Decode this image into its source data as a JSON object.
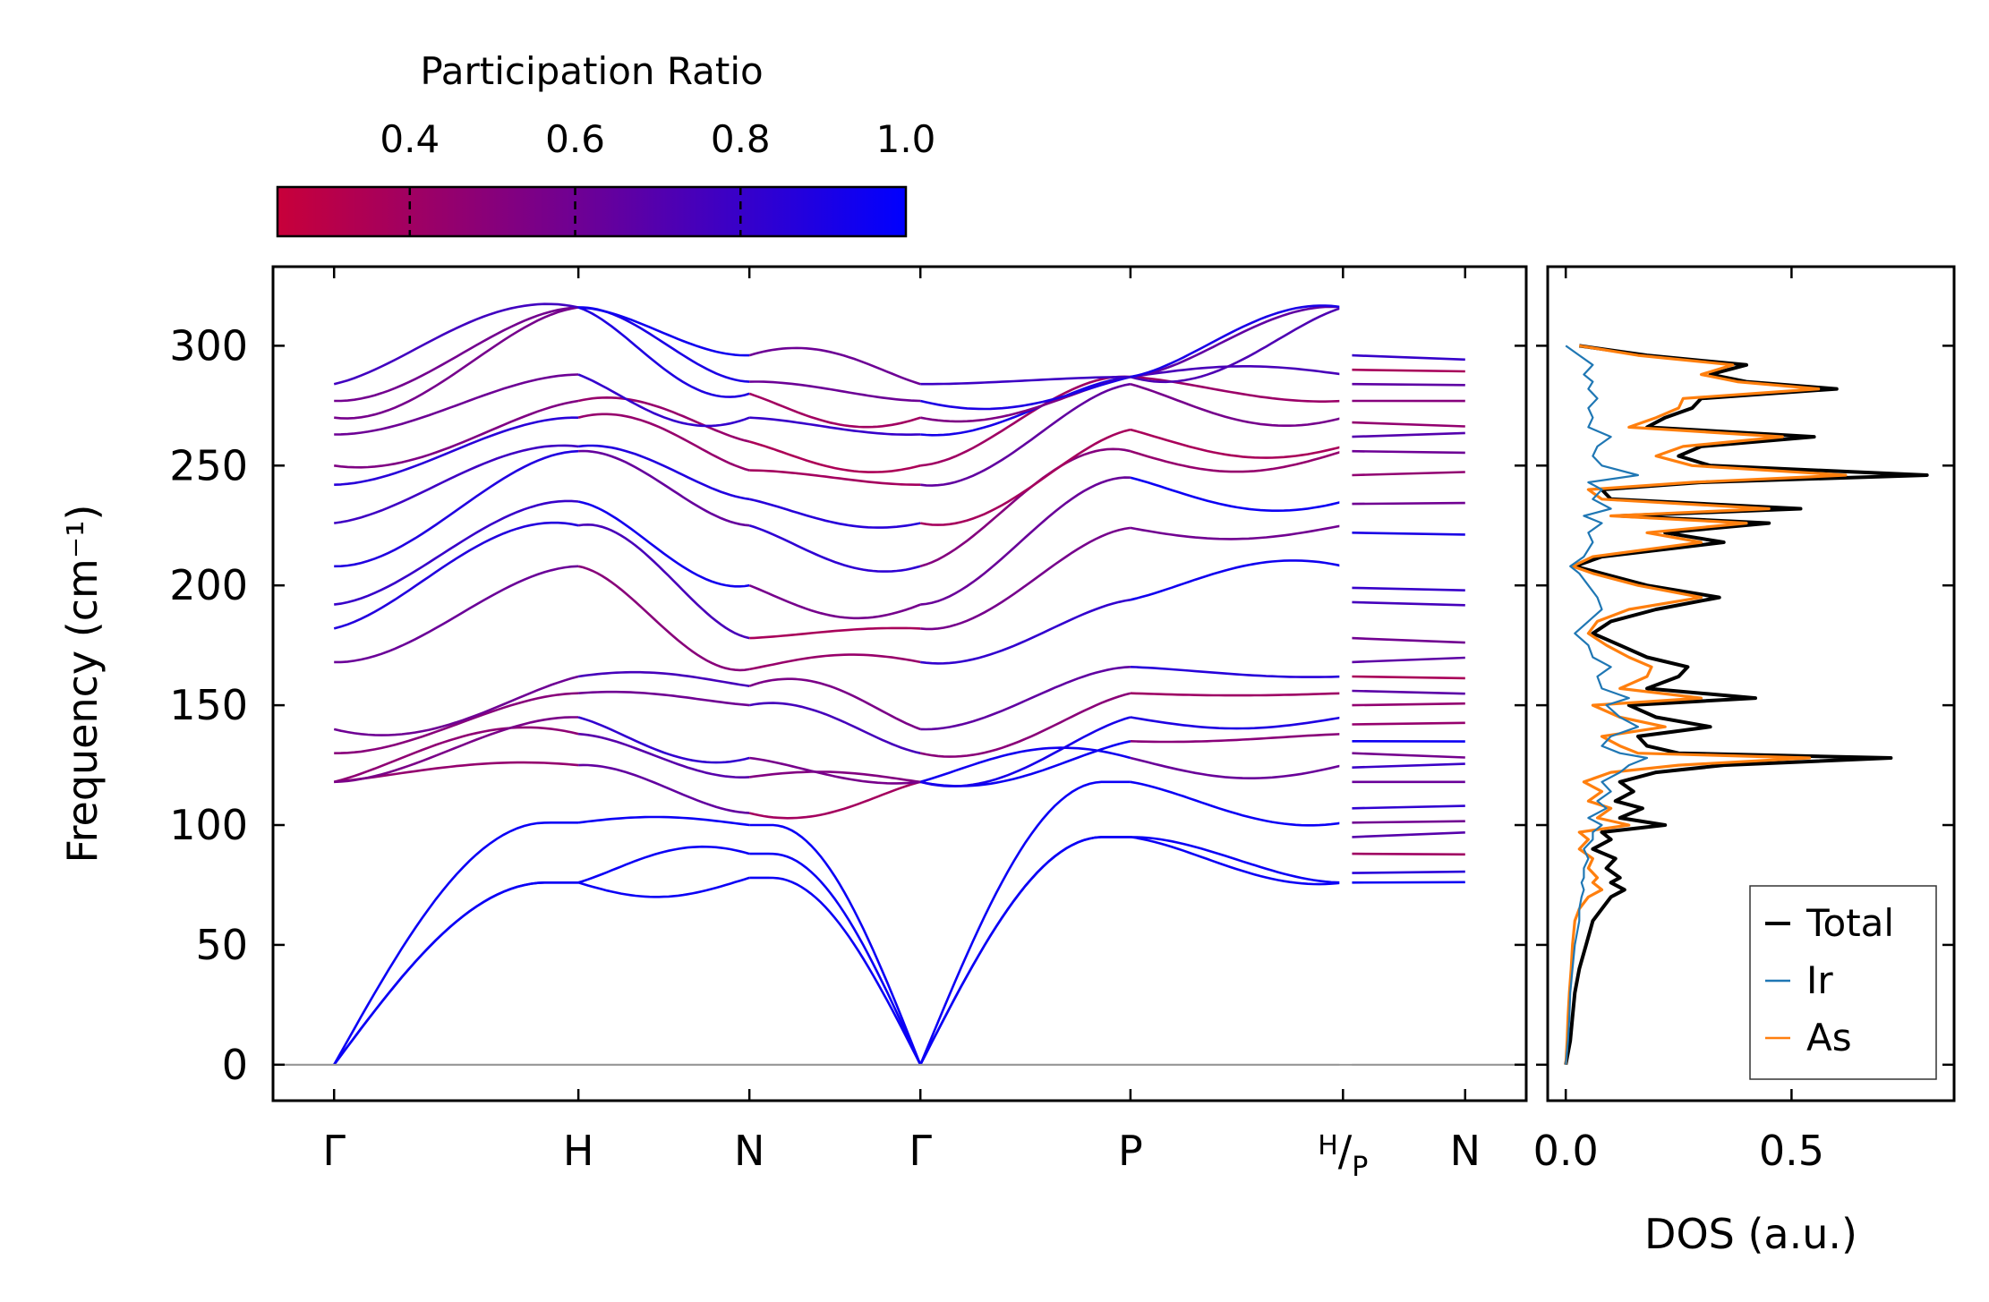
{
  "colorbar": {
    "title": "Participation Ratio",
    "ticks": [
      {
        "value": 0.4,
        "label": "0.4"
      },
      {
        "value": 0.6,
        "label": "0.6"
      },
      {
        "value": 0.8,
        "label": "0.8"
      },
      {
        "value": 1.0,
        "label": "1.0"
      }
    ],
    "range": [
      0.24,
      1.0
    ],
    "colors": {
      "low": "#c8003a",
      "high": "#0000ff"
    }
  },
  "chart_data": [
    {
      "type": "line",
      "name": "phonon-dispersion",
      "ylabel": "Frequency (cm⁻¹)",
      "ylim": [
        -15,
        333
      ],
      "yticks": [
        0,
        50,
        100,
        150,
        200,
        250,
        300
      ],
      "path_labels": [
        "Γ",
        "H",
        "N",
        "Γ",
        "P",
        "H/P",
        "N"
      ],
      "segment_lengths": [
        1.0,
        0.7,
        0.7,
        0.86,
        0.87,
        0.5
      ],
      "x_range": [
        -0.25,
        4.88
      ],
      "zero_line": true,
      "branch_frequencies_at_special_points": {
        "Gamma": [
          0,
          0,
          0,
          118,
          118,
          118,
          130,
          140,
          168,
          182,
          192,
          208,
          226,
          242,
          250,
          263,
          270,
          277,
          284
        ],
        "H": [
          76,
          76,
          101,
          125,
          138,
          145,
          155,
          162,
          208,
          225,
          235,
          256,
          258,
          270,
          277,
          288,
          316
        ],
        "N": [
          78,
          88,
          100,
          105,
          120,
          128,
          150,
          158,
          165,
          178,
          200,
          225,
          236,
          248,
          260,
          270,
          280,
          285,
          296
        ],
        "P": [
          95,
          95,
          118,
          128,
          135,
          145,
          155,
          166,
          194,
          224,
          245,
          256,
          265,
          284,
          287
        ]
      }
    },
    {
      "type": "line",
      "name": "density-of-states",
      "xlabel": "DOS (a.u.)",
      "xlim": [
        -0.04,
        0.86
      ],
      "xticks": [
        0.0,
        0.5
      ],
      "xtick_labels": [
        "0.0",
        "0.5"
      ],
      "ylim": [
        -15,
        333
      ],
      "series": [
        {
          "name": "Total",
          "color": "#000000",
          "y": [
            0,
            10,
            20,
            30,
            40,
            50,
            60,
            65,
            70,
            73,
            76,
            78,
            82,
            86,
            90,
            94,
            97,
            100,
            103,
            107,
            110,
            114,
            118,
            122,
            125,
            128,
            130,
            133,
            137,
            141,
            145,
            150,
            153,
            157,
            162,
            166,
            170,
            175,
            180,
            185,
            190,
            195,
            200,
            205,
            208,
            212,
            218,
            222,
            226,
            229,
            232,
            236,
            240,
            243,
            246,
            250,
            254,
            258,
            262,
            266,
            270,
            274,
            278,
            282,
            285,
            288,
            292,
            296,
            300
          ],
          "dos": [
            0.0,
            0.01,
            0.015,
            0.02,
            0.03,
            0.045,
            0.06,
            0.08,
            0.1,
            0.13,
            0.1,
            0.12,
            0.09,
            0.11,
            0.06,
            0.1,
            0.08,
            0.22,
            0.12,
            0.17,
            0.11,
            0.15,
            0.12,
            0.2,
            0.35,
            0.72,
            0.25,
            0.18,
            0.16,
            0.32,
            0.2,
            0.14,
            0.42,
            0.18,
            0.25,
            0.27,
            0.18,
            0.12,
            0.06,
            0.1,
            0.2,
            0.34,
            0.18,
            0.08,
            0.02,
            0.08,
            0.35,
            0.22,
            0.45,
            0.12,
            0.52,
            0.1,
            0.08,
            0.3,
            0.8,
            0.32,
            0.25,
            0.3,
            0.55,
            0.18,
            0.22,
            0.28,
            0.3,
            0.6,
            0.4,
            0.32,
            0.4,
            0.18,
            0.03
          ]
        },
        {
          "name": "Ir",
          "color": "#1f77b4",
          "y": [
            0,
            10,
            20,
            30,
            40,
            50,
            60,
            65,
            70,
            73,
            76,
            78,
            82,
            86,
            90,
            94,
            97,
            100,
            103,
            107,
            110,
            114,
            118,
            122,
            125,
            128,
            130,
            133,
            137,
            141,
            145,
            150,
            153,
            157,
            162,
            166,
            170,
            175,
            180,
            185,
            190,
            195,
            200,
            205,
            208,
            212,
            218,
            222,
            226,
            229,
            232,
            236,
            240,
            243,
            246,
            250,
            254,
            258,
            262,
            266,
            270,
            274,
            278,
            282,
            285,
            288,
            292,
            296,
            300
          ],
          "dos": [
            0.0,
            0.005,
            0.008,
            0.01,
            0.015,
            0.02,
            0.03,
            0.03,
            0.035,
            0.04,
            0.035,
            0.04,
            0.04,
            0.05,
            0.04,
            0.06,
            0.06,
            0.08,
            0.05,
            0.09,
            0.07,
            0.1,
            0.08,
            0.12,
            0.14,
            0.18,
            0.12,
            0.08,
            0.1,
            0.16,
            0.12,
            0.09,
            0.14,
            0.08,
            0.07,
            0.1,
            0.06,
            0.05,
            0.02,
            0.05,
            0.08,
            0.07,
            0.05,
            0.03,
            0.01,
            0.04,
            0.06,
            0.05,
            0.08,
            0.04,
            0.1,
            0.06,
            0.08,
            0.05,
            0.16,
            0.08,
            0.06,
            0.07,
            0.1,
            0.05,
            0.06,
            0.05,
            0.07,
            0.05,
            0.06,
            0.04,
            0.06,
            0.03,
            0.0
          ]
        },
        {
          "name": "As",
          "color": "#ff7f0e",
          "y": [
            0,
            10,
            20,
            30,
            40,
            50,
            60,
            65,
            70,
            73,
            76,
            78,
            82,
            86,
            90,
            94,
            97,
            100,
            103,
            107,
            110,
            114,
            118,
            122,
            125,
            128,
            130,
            133,
            137,
            141,
            145,
            150,
            153,
            157,
            162,
            166,
            170,
            175,
            180,
            185,
            190,
            195,
            200,
            205,
            208,
            212,
            218,
            222,
            226,
            229,
            232,
            236,
            240,
            243,
            246,
            250,
            254,
            258,
            262,
            266,
            270,
            274,
            278,
            282,
            285,
            288,
            292,
            296,
            300
          ],
          "dos": [
            0.0,
            0.003,
            0.005,
            0.008,
            0.012,
            0.015,
            0.02,
            0.03,
            0.05,
            0.08,
            0.06,
            0.07,
            0.05,
            0.06,
            0.03,
            0.05,
            0.03,
            0.14,
            0.07,
            0.1,
            0.05,
            0.08,
            0.04,
            0.1,
            0.25,
            0.54,
            0.16,
            0.12,
            0.08,
            0.22,
            0.12,
            0.06,
            0.3,
            0.12,
            0.18,
            0.19,
            0.14,
            0.09,
            0.05,
            0.07,
            0.14,
            0.3,
            0.16,
            0.06,
            0.015,
            0.06,
            0.3,
            0.18,
            0.4,
            0.1,
            0.45,
            0.08,
            0.05,
            0.28,
            0.62,
            0.28,
            0.2,
            0.26,
            0.48,
            0.14,
            0.2,
            0.25,
            0.26,
            0.56,
            0.38,
            0.3,
            0.37,
            0.16,
            0.03
          ]
        }
      ],
      "legend": {
        "position": "bottom-right",
        "entries": [
          "Total",
          "Ir",
          "As"
        ]
      }
    }
  ]
}
